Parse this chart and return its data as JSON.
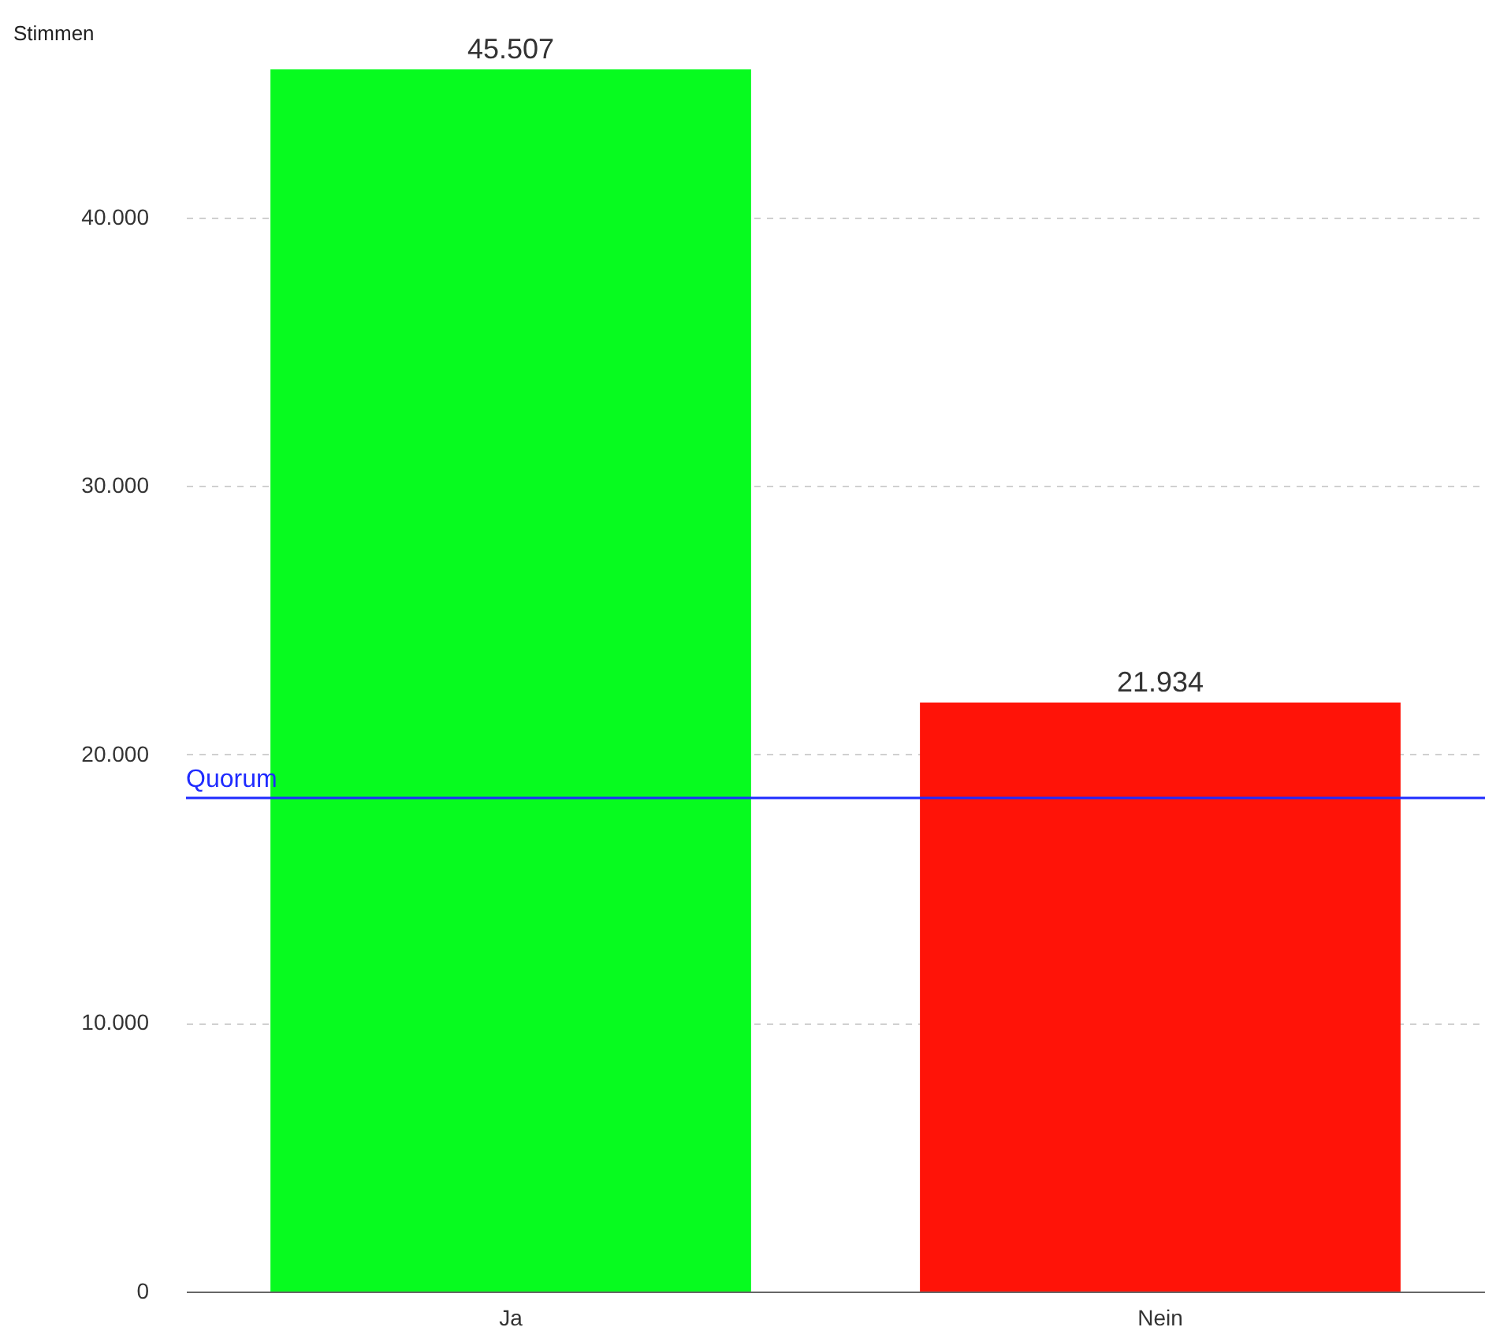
{
  "chart_data": {
    "type": "bar",
    "ylabel": "Stimmen",
    "categories": [
      "Ja",
      "Nein"
    ],
    "values": [
      45507,
      21934
    ],
    "colors": [
      "#07fb1f",
      "#ff1308"
    ],
    "value_labels": [
      "45.507",
      "21.934"
    ],
    "yticks": [
      {
        "value": 0,
        "label": "0"
      },
      {
        "value": 10000,
        "label": "10.000"
      },
      {
        "value": 20000,
        "label": "20.000"
      },
      {
        "value": 30000,
        "label": "30.000"
      },
      {
        "value": 40000,
        "label": "40.000"
      }
    ],
    "ylim": [
      0,
      45507
    ],
    "grid": "y",
    "ref_lines": [
      {
        "axis": "y",
        "value": 18380,
        "label": "Quorum",
        "color": "#1f2bff"
      }
    ]
  }
}
